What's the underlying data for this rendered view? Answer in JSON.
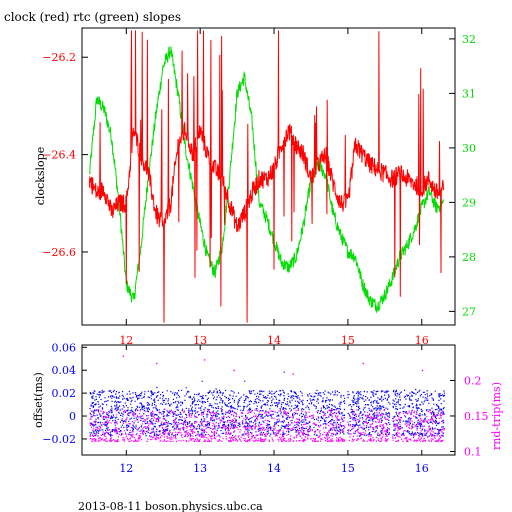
{
  "title": "clock (red) rtc (green) slopes",
  "footer": "2013-08-11 boson.physics.ubc.ca",
  "colors": {
    "axis": "#000000",
    "clock": "#ff0000",
    "rtc": "#00dd00",
    "offset": "#0000ff",
    "rndtrip": "#ff00ff"
  },
  "chart_data": [
    {
      "type": "line",
      "title": "clock (red) rtc (green) slopes",
      "xlabel": "",
      "ylabel": "clockslope",
      "xlim": [
        11.4,
        16.45
      ],
      "ylim": [
        -26.75,
        -26.14
      ],
      "y2lim": [
        26.75,
        32.2
      ],
      "xticks": [
        12,
        13,
        14,
        15,
        16
      ],
      "yticks": [
        -26.2,
        -26.4,
        -26.6
      ],
      "y2ticks": [
        32,
        31,
        30,
        29,
        28,
        27
      ],
      "grid": false,
      "series": [
        {
          "name": "clock",
          "axis": "left",
          "x": [
            11.5,
            11.6,
            11.7,
            11.8,
            11.9,
            12.0,
            12.1,
            12.2,
            12.3,
            12.4,
            12.5,
            12.6,
            12.7,
            12.8,
            12.9,
            13.0,
            13.1,
            13.2,
            13.3,
            13.4,
            13.5,
            13.6,
            13.7,
            13.8,
            13.9,
            14.0,
            14.1,
            14.2,
            14.3,
            14.4,
            14.5,
            14.6,
            14.7,
            14.8,
            14.9,
            15.0,
            15.1,
            15.2,
            15.3,
            15.4,
            15.5,
            15.6,
            15.7,
            15.8,
            15.9,
            16.0,
            16.1,
            16.2,
            16.3
          ],
          "values": [
            -26.45,
            -26.48,
            -26.47,
            -26.52,
            -26.5,
            -26.5,
            -26.35,
            -26.4,
            -26.44,
            -26.52,
            -26.55,
            -26.5,
            -26.38,
            -26.35,
            -26.4,
            -26.35,
            -26.4,
            -26.43,
            -26.45,
            -26.5,
            -26.55,
            -26.52,
            -26.48,
            -26.45,
            -26.45,
            -26.43,
            -26.38,
            -26.35,
            -26.38,
            -26.4,
            -26.45,
            -26.42,
            -26.4,
            -26.46,
            -26.5,
            -26.5,
            -26.38,
            -26.4,
            -26.42,
            -26.43,
            -26.44,
            -26.45,
            -26.44,
            -26.45,
            -26.46,
            -26.47,
            -26.45,
            -26.48,
            -26.47
          ]
        },
        {
          "name": "rtc",
          "axis": "right",
          "x": [
            11.5,
            11.6,
            11.7,
            11.8,
            11.9,
            12.0,
            12.1,
            12.2,
            12.3,
            12.4,
            12.5,
            12.6,
            12.7,
            12.8,
            12.9,
            13.0,
            13.1,
            13.2,
            13.3,
            13.4,
            13.5,
            13.6,
            13.7,
            13.8,
            13.9,
            14.0,
            14.1,
            14.2,
            14.3,
            14.4,
            14.5,
            14.6,
            14.7,
            14.8,
            14.9,
            15.0,
            15.1,
            15.2,
            15.3,
            15.4,
            15.5,
            15.6,
            15.7,
            15.8,
            15.9,
            16.0,
            16.1,
            16.2,
            16.3
          ],
          "values": [
            29.5,
            30.9,
            30.7,
            30.2,
            29.0,
            27.5,
            27.2,
            28.2,
            29.5,
            30.6,
            31.5,
            31.8,
            31.0,
            30.0,
            29.3,
            28.6,
            28.0,
            27.7,
            28.2,
            29.5,
            31.0,
            31.3,
            30.5,
            29.0,
            28.7,
            28.3,
            27.9,
            27.8,
            28.0,
            28.6,
            29.4,
            29.7,
            29.5,
            28.8,
            28.4,
            28.1,
            28.0,
            27.5,
            27.2,
            27.1,
            27.3,
            27.6,
            28.0,
            28.2,
            28.5,
            28.9,
            29.2,
            28.9,
            29.0
          ]
        }
      ],
      "legend": "none"
    },
    {
      "type": "scatter",
      "xlabel": "",
      "ylabel": "offset(ms)",
      "y2label": "rnd-trip(ms)",
      "xlim": [
        11.4,
        16.45
      ],
      "ylim": [
        -0.034,
        0.062
      ],
      "y2lim": [
        0.095,
        0.25
      ],
      "xticks": [
        12,
        13,
        14,
        15,
        16
      ],
      "yticks": [
        0.06,
        0.04,
        0.02,
        0,
        -0.02
      ],
      "y2ticks": [
        0.2,
        0.15,
        0.1
      ],
      "grid": false,
      "series": [
        {
          "name": "offset",
          "axis": "left",
          "band": {
            "x_from": 11.5,
            "x_to": 16.3,
            "center": 0.003,
            "half_width": 0.02
          },
          "gaps_x": [
            14.97,
            15.58
          ]
        },
        {
          "name": "rnd-trip",
          "axis": "right",
          "band": {
            "x_from": 11.5,
            "x_to": 16.3,
            "low": 0.115,
            "high": 0.16
          },
          "outliers": [
            [
              11.95,
              0.235
            ],
            [
              12.4,
              0.225
            ],
            [
              13.05,
              0.23
            ],
            [
              13.45,
              0.215
            ],
            [
              14.25,
              0.21
            ],
            [
              15.2,
              0.225
            ],
            [
              16.0,
              0.215
            ]
          ]
        }
      ],
      "legend": "none"
    }
  ]
}
